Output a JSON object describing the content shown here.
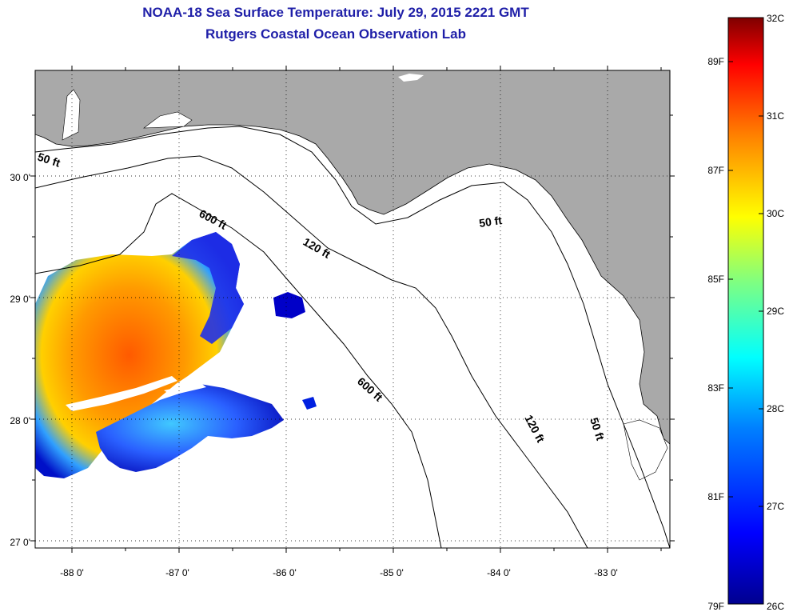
{
  "title": "NOAA-18 Sea Surface Temperature:  July 29, 2015 2221 GMT",
  "subtitle": "Rutgers Coastal Ocean Observation Lab",
  "map": {
    "lon_ticks": [
      "-88 0'",
      "-87 0'",
      "-86 0'",
      "-85 0'",
      "-84 0'",
      "-83 0'"
    ],
    "lat_ticks": [
      "30 0'",
      "29 0'",
      "28 0'",
      "27 0'"
    ],
    "lon_values": [
      -88,
      -87,
      -86,
      -85,
      -84,
      -83
    ],
    "lat_values": [
      30,
      29,
      28,
      27
    ],
    "land_color": "#a9a9a9",
    "water_color": "#ffffff",
    "grid": "dotted",
    "contour_labels": [
      {
        "text": "50 ft"
      },
      {
        "text": "600 ft"
      },
      {
        "text": "120 ft"
      },
      {
        "text": "50 ft"
      },
      {
        "text": "600 ft"
      },
      {
        "text": "120 ft"
      },
      {
        "text": "50 ft"
      }
    ]
  },
  "colorbar": {
    "fahrenheit_labels": [
      "89F",
      "87F",
      "85F",
      "83F",
      "81F",
      "79F"
    ],
    "celsius_labels": [
      "32C",
      "31C",
      "30C",
      "29C",
      "28C",
      "27C",
      "26C"
    ],
    "colors": [
      "#7f0000",
      "#ff0000",
      "#ff8000",
      "#ffff00",
      "#80ff80",
      "#00ffff",
      "#0080ff",
      "#0000ff",
      "#00008f"
    ]
  }
}
